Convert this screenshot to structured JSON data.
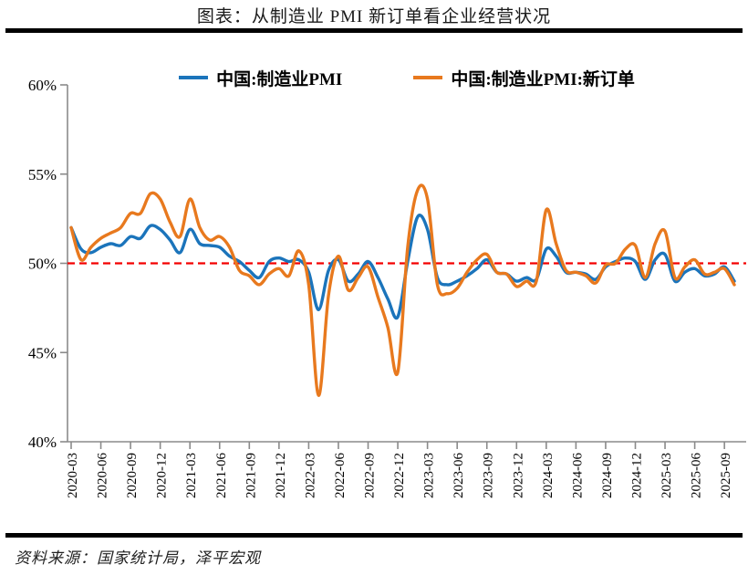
{
  "header": {
    "title": "图表：从制造业 PMI 新订单看企业经营状况"
  },
  "footer": {
    "source": "资料来源：国家统计局，泽平宏观"
  },
  "chart_data": {
    "type": "line",
    "legend_position": "top",
    "grid": false,
    "axis_color": "#8a8a8a",
    "x": [
      "2020-03",
      "2020-04",
      "2020-05",
      "2020-06",
      "2020-07",
      "2020-08",
      "2020-09",
      "2020-10",
      "2020-11",
      "2020-12",
      "2021-01",
      "2021-02",
      "2021-03",
      "2021-04",
      "2021-05",
      "2021-06",
      "2021-07",
      "2021-08",
      "2021-09",
      "2021-10",
      "2021-11",
      "2021-12",
      "2022-01",
      "2022-02",
      "2022-03",
      "2022-04",
      "2022-05",
      "2022-06",
      "2022-07",
      "2022-08",
      "2022-09",
      "2022-10",
      "2022-11",
      "2022-12",
      "2023-01",
      "2023-02",
      "2023-03",
      "2023-04",
      "2023-05",
      "2023-06",
      "2023-07",
      "2023-08",
      "2023-09",
      "2023-10",
      "2023-11",
      "2023-12",
      "2024-01",
      "2024-02",
      "2024-03",
      "2024-04",
      "2024-05",
      "2024-06",
      "2024-07",
      "2024-08",
      "2024-09",
      "2024-10",
      "2024-11",
      "2024-12",
      "2025-01",
      "2025-02",
      "2025-03",
      "2025-04",
      "2025-05",
      "2025-06",
      "2025-07",
      "2025-08",
      "2025-09",
      "2025-10"
    ],
    "x_tick_interval": 3,
    "series": [
      {
        "name": "中国:制造业PMI",
        "color": "#1b74bb",
        "values": [
          52.0,
          50.8,
          50.6,
          50.9,
          51.1,
          51.0,
          51.5,
          51.4,
          52.1,
          51.9,
          51.3,
          50.6,
          51.9,
          51.1,
          51.0,
          50.9,
          50.4,
          50.1,
          49.6,
          49.2,
          50.1,
          50.3,
          50.1,
          50.2,
          49.5,
          47.4,
          49.6,
          50.2,
          49.0,
          49.4,
          50.1,
          49.2,
          48.0,
          47.0,
          50.1,
          52.6,
          51.9,
          49.2,
          48.8,
          49.0,
          49.3,
          49.7,
          50.2,
          49.5,
          49.4,
          49.0,
          49.2,
          49.1,
          50.8,
          50.4,
          49.5,
          49.5,
          49.4,
          49.1,
          49.8,
          50.1,
          50.3,
          50.1,
          49.1,
          50.2,
          50.5,
          49.0,
          49.5,
          49.7,
          49.3,
          49.4,
          49.8,
          49.0
        ]
      },
      {
        "name": "中国:制造业PMI:新订单",
        "color": "#e8791e",
        "values": [
          52.0,
          50.2,
          50.9,
          51.4,
          51.7,
          52.0,
          52.8,
          52.8,
          53.9,
          53.6,
          52.3,
          51.5,
          53.6,
          52.0,
          51.3,
          51.5,
          50.9,
          49.6,
          49.3,
          48.8,
          49.4,
          49.7,
          49.3,
          50.7,
          48.8,
          42.6,
          48.2,
          50.4,
          48.5,
          49.2,
          49.8,
          48.1,
          46.4,
          43.9,
          50.9,
          54.1,
          53.6,
          48.8,
          48.3,
          48.6,
          49.5,
          50.2,
          50.5,
          49.5,
          49.4,
          48.7,
          49.0,
          49.0,
          53.0,
          51.1,
          49.6,
          49.5,
          49.3,
          48.9,
          49.9,
          50.0,
          50.8,
          51.0,
          49.2,
          51.1,
          51.8,
          49.2,
          49.8,
          50.2,
          49.4,
          49.5,
          49.7,
          48.8
        ]
      }
    ],
    "ylim": [
      40,
      60
    ],
    "y_ticks": [
      {
        "value": 60,
        "label": "60%"
      },
      {
        "value": 55,
        "label": "55%"
      },
      {
        "value": 50,
        "label": "50%"
      },
      {
        "value": 45,
        "label": "45%"
      },
      {
        "value": 40,
        "label": "40%"
      }
    ],
    "reference_line": {
      "value": 50,
      "color": "#f40000",
      "style": "dashed"
    }
  }
}
